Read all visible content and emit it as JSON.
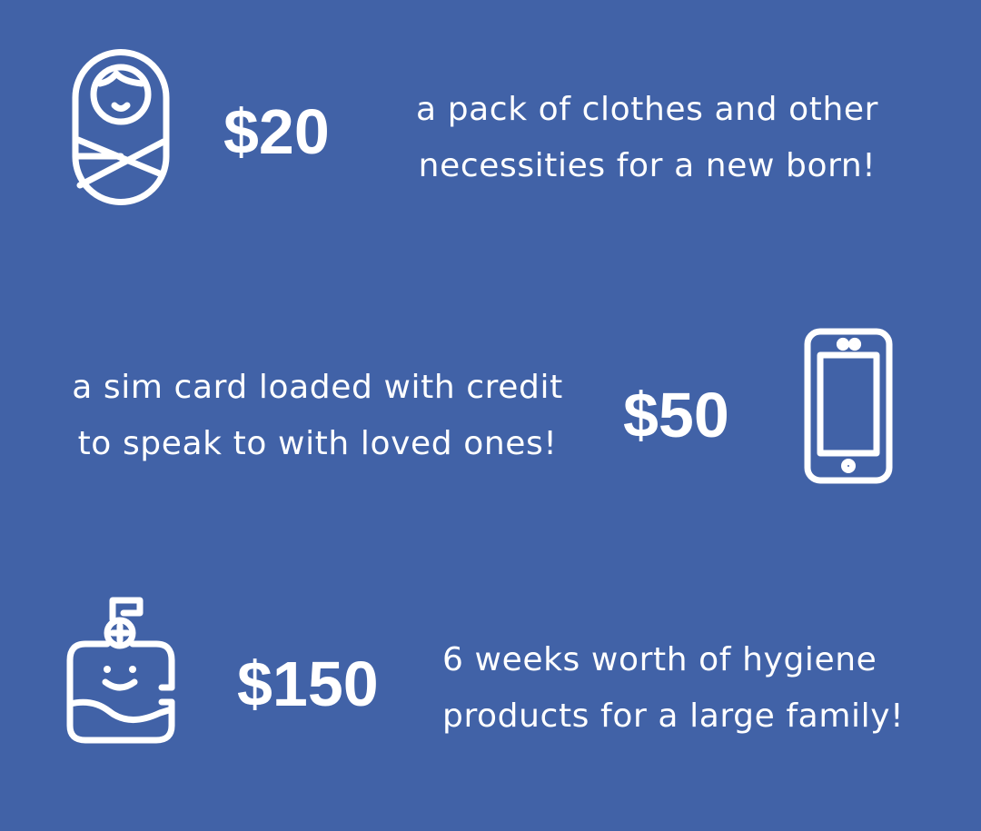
{
  "items": [
    {
      "price": "$20",
      "lines": [
        "a pack of clothes and other",
        "necessities for a new born!"
      ],
      "icon": "swaddled-baby-icon"
    },
    {
      "price": "$50",
      "lines": [
        "a sim card loaded with credit",
        "to speak to with loved ones!"
      ],
      "icon": "mobile-phone-icon"
    },
    {
      "price": "$150",
      "lines": [
        "6 weeks worth of hygiene",
        "products for a large family!"
      ],
      "icon": "soap-dispenser-icon"
    }
  ],
  "colors": {
    "background": "#4162a7",
    "foreground": "#ffffff"
  }
}
